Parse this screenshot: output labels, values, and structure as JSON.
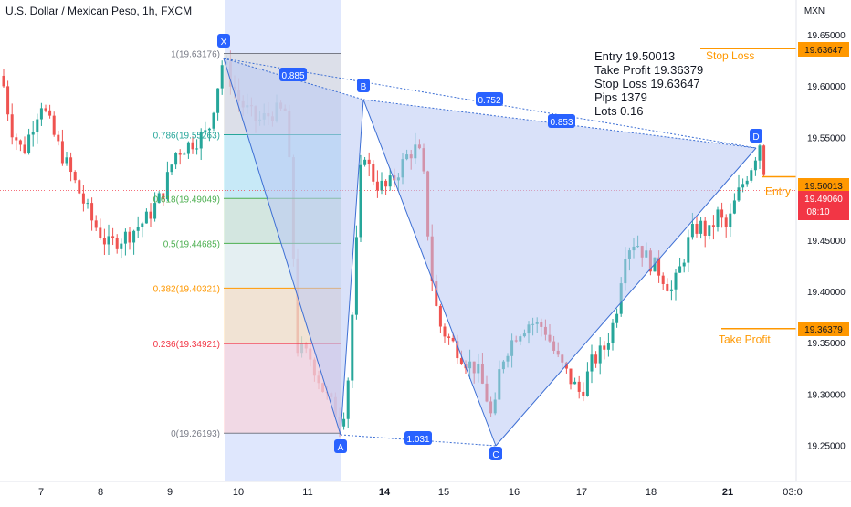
{
  "header": {
    "title": "U.S. Dollar / Mexican Peso, 1h, FXCM"
  },
  "axis": {
    "currency": "MXN",
    "y_ticks": [
      "19.65000",
      "19.60000",
      "19.55000",
      "19.45000",
      "19.40000",
      "19.35000",
      "19.30000",
      "19.25000"
    ],
    "x_ticks": [
      "7",
      "8",
      "9",
      "10",
      "11",
      "14",
      "15",
      "16",
      "17",
      "18",
      "21",
      "03:0"
    ]
  },
  "trade": {
    "entry_text": "Entry 19.50013",
    "take_profit_text": "Take Profit 19.36379",
    "stop_loss_text": "Stop Loss 19.63647",
    "pips_text": "Pips 1379",
    "lots_text": "Lots 0.16",
    "entry_label": "Entry",
    "stop_label": "Stop Loss",
    "tp_label": "Take Profit",
    "entry_price": "19.50013",
    "stop_price": "19.63647",
    "tp_price": "19.36379",
    "current_price": "19.49060",
    "countdown": "08:10"
  },
  "fib_levels": [
    {
      "label": "1(19.63176)",
      "value": 19.63176,
      "color": "#787b86"
    },
    {
      "label": "0.786(19.55263)",
      "value": 19.55263,
      "color": "#26a69a"
    },
    {
      "label": "0.618(19.49049)",
      "value": 19.49049,
      "color": "#4caf50"
    },
    {
      "label": "0.5(19.44685)",
      "value": 19.44685,
      "color": "#4caf50"
    },
    {
      "label": "0.382(19.40321)",
      "value": 19.40321,
      "color": "#ff9800"
    },
    {
      "label": "0.236(19.34921)",
      "value": 19.34921,
      "color": "#f23645"
    },
    {
      "label": "0(19.26193)",
      "value": 19.26193,
      "color": "#787b86"
    }
  ],
  "pattern": {
    "points": [
      {
        "label": "X",
        "x": "10",
        "value": 19.63176
      },
      {
        "label": "A",
        "x": "11",
        "value": 19.26193
      },
      {
        "label": "B",
        "x": "14",
        "value": 19.585
      },
      {
        "label": "C",
        "x": "15",
        "value": 19.251
      },
      {
        "label": "D",
        "x": "21",
        "value": 19.54
      }
    ],
    "ratios": {
      "xb": "0.885",
      "ac": "1.031",
      "bd": "0.752",
      "xd": "0.853"
    }
  },
  "colors": {
    "up": "#26a69a",
    "down": "#ef5350",
    "pattern_fill": "#b9c8f4",
    "pattern_line": "#3d6fd4",
    "label_bg": "#2962ff",
    "order_orange": "#ff9800",
    "price_red": "#f23645",
    "highlight": "#c5d3fb"
  },
  "chart_data": {
    "type": "candlestick",
    "title": "U.S. Dollar / Mexican Peso, 1h, FXCM",
    "y_unit": "MXN",
    "ylim": [
      19.2,
      19.68
    ],
    "grid": false,
    "series": [
      {
        "x": "7",
        "close": 19.56
      },
      {
        "x": "8",
        "close": 19.45
      },
      {
        "x": "9",
        "close": 19.51
      },
      {
        "x": "10",
        "close": 19.58
      },
      {
        "x": "11",
        "close": 19.31
      },
      {
        "x": "14",
        "close": 19.54
      },
      {
        "x": "15",
        "close": 19.33
      },
      {
        "x": "16",
        "close": 19.37
      },
      {
        "x": "17",
        "close": 19.33
      },
      {
        "x": "18",
        "close": 19.42
      },
      {
        "x": "21",
        "close": 19.49
      }
    ]
  }
}
